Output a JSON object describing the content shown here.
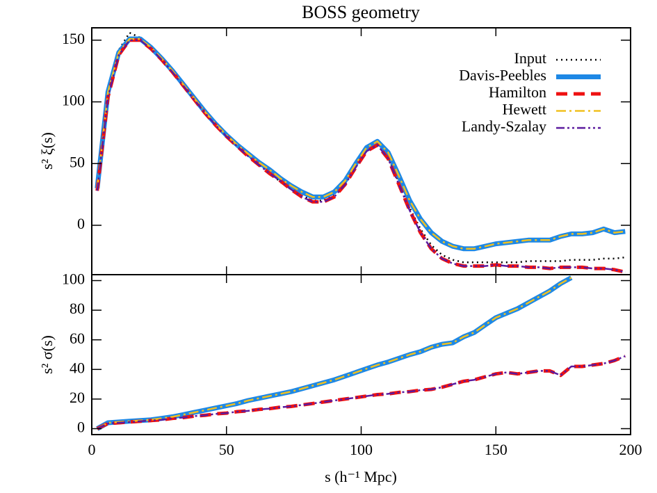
{
  "chart_data": [
    {
      "type": "line",
      "title": "BOSS geometry",
      "y_label": "s² ξ(s)",
      "legend": "upper right",
      "ylim": [
        -40,
        160
      ],
      "yticks": [
        0,
        50,
        100,
        150
      ],
      "x": [
        2,
        6,
        10,
        14,
        18,
        22,
        26,
        30,
        34,
        38,
        42,
        46,
        50,
        54,
        58,
        62,
        66,
        70,
        74,
        78,
        82,
        86,
        90,
        94,
        98,
        102,
        106,
        110,
        114,
        118,
        122,
        126,
        130,
        134,
        138,
        142,
        146,
        150,
        154,
        158,
        162,
        166,
        170,
        174,
        178,
        182,
        186,
        190,
        194,
        198
      ],
      "series": [
        {
          "name": "Input",
          "color": "#000000",
          "linestyle": "dotted",
          "values": [
            30,
            106,
            142,
            156,
            152,
            144,
            135,
            125,
            114,
            103,
            92,
            82,
            73,
            64,
            57,
            50,
            43,
            35,
            29,
            24,
            20,
            20,
            25,
            35,
            48,
            61,
            65,
            55,
            35,
            14,
            -3,
            -16,
            -24,
            -28,
            -30,
            -30,
            -30,
            -30,
            -30,
            -30,
            -29,
            -29,
            -29,
            -29,
            -28,
            -28,
            -28,
            -27,
            -27,
            -26
          ]
        },
        {
          "name": "Davis-Peebles",
          "color": "#1e88e5",
          "linestyle": "solid",
          "values": [
            30,
            108,
            140,
            151,
            151,
            144,
            135,
            125,
            114,
            103,
            92,
            82,
            73,
            65,
            58,
            51,
            45,
            38,
            32,
            27,
            23,
            23,
            27,
            36,
            50,
            63,
            68,
            59,
            40,
            20,
            5,
            -6,
            -13,
            -17,
            -19,
            -19,
            -17,
            -15,
            -14,
            -13,
            -12,
            -12,
            -12,
            -9,
            -7,
            -7,
            -6,
            -3,
            -6,
            -5
          ]
        },
        {
          "name": "Hamilton",
          "color": "#ee1111",
          "linestyle": "dashed",
          "values": [
            28,
            104,
            138,
            150,
            150,
            143,
            134,
            124,
            113,
            102,
            91,
            81,
            72,
            64,
            56,
            49,
            42,
            36,
            29,
            23,
            19,
            19,
            23,
            33,
            47,
            60,
            65,
            54,
            33,
            12,
            -6,
            -19,
            -27,
            -31,
            -33,
            -33,
            -33,
            -32,
            -33,
            -33,
            -34,
            -34,
            -35,
            -34,
            -34,
            -34,
            -35,
            -35,
            -36,
            -38
          ]
        },
        {
          "name": "Hewett",
          "color": "#f0c020",
          "linestyle": "dashdot",
          "values": [
            30,
            108,
            140,
            151,
            151,
            144,
            135,
            125,
            114,
            103,
            92,
            82,
            73,
            65,
            58,
            51,
            45,
            38,
            32,
            27,
            23,
            23,
            27,
            36,
            50,
            63,
            68,
            59,
            40,
            20,
            5,
            -6,
            -13,
            -17,
            -19,
            -19,
            -17,
            -15,
            -14,
            -13,
            -12,
            -12,
            -12,
            -9,
            -7,
            -7,
            -6,
            -3,
            -6,
            -5
          ]
        },
        {
          "name": "Landy-Szalay",
          "color": "#5b1a9e",
          "linestyle": "dashdotdot",
          "values": [
            28,
            104,
            138,
            150,
            150,
            143,
            134,
            124,
            113,
            102,
            91,
            81,
            72,
            64,
            56,
            49,
            42,
            36,
            29,
            23,
            19,
            19,
            23,
            33,
            47,
            60,
            65,
            54,
            33,
            12,
            -6,
            -19,
            -27,
            -31,
            -33,
            -33,
            -33,
            -32,
            -33,
            -33,
            -34,
            -34,
            -35,
            -34,
            -34,
            -34,
            -35,
            -35,
            -36,
            -38
          ]
        }
      ]
    },
    {
      "type": "line",
      "y_label": "s² σ(s)",
      "x_label": "s (h⁻¹ Mpc)",
      "xlim": [
        0,
        200
      ],
      "xticks": [
        0,
        50,
        100,
        150,
        200
      ],
      "ylim": [
        -4,
        104
      ],
      "yticks": [
        0,
        20,
        40,
        60,
        80,
        100
      ],
      "x": [
        2,
        6,
        10,
        14,
        18,
        22,
        26,
        30,
        34,
        38,
        42,
        46,
        50,
        54,
        58,
        62,
        66,
        70,
        74,
        78,
        82,
        86,
        90,
        94,
        98,
        102,
        106,
        110,
        114,
        118,
        122,
        126,
        130,
        134,
        138,
        142,
        146,
        150,
        154,
        158,
        162,
        166,
        170,
        174,
        178,
        182,
        186,
        190,
        194,
        198
      ],
      "series": [
        {
          "color": "#1e88e5",
          "linestyle": "solid",
          "values": [
            0,
            4,
            4.5,
            5,
            5.5,
            6,
            7,
            8,
            9.5,
            11,
            12.5,
            14,
            15.5,
            17,
            19,
            20.5,
            22,
            23.5,
            25,
            27,
            29,
            31,
            33,
            35.5,
            38,
            40.5,
            43,
            45,
            47.5,
            50,
            52,
            55,
            57,
            58,
            62,
            65,
            70,
            75,
            78,
            81,
            85,
            89,
            93,
            98,
            102,
            null,
            null,
            null,
            null,
            null
          ]
        },
        {
          "color": "#ee1111",
          "linestyle": "dashed",
          "values": [
            0,
            3.5,
            4,
            4.5,
            5,
            5.5,
            6,
            7,
            7.5,
            8.5,
            9,
            10,
            10.5,
            11.5,
            12,
            13,
            13.5,
            14.5,
            15,
            16,
            17,
            18,
            19,
            20,
            21,
            22,
            23,
            23.5,
            24.5,
            25,
            26,
            26.5,
            28,
            30,
            32,
            33,
            35,
            37,
            38,
            37,
            38,
            39,
            39,
            36,
            42,
            42,
            43,
            44,
            46,
            49
          ]
        },
        {
          "color": "#f0c020",
          "linestyle": "dashdot",
          "values": [
            0,
            4,
            4.5,
            5,
            5.5,
            6,
            7,
            8,
            9.5,
            11,
            12.5,
            14,
            15.5,
            17,
            19,
            20.5,
            22,
            23.5,
            25,
            27,
            29,
            31,
            33,
            35.5,
            38,
            40.5,
            43,
            45,
            47.5,
            50,
            52,
            55,
            57,
            58,
            62,
            65,
            70,
            75,
            78,
            81,
            85,
            89,
            93,
            98,
            102,
            null,
            null,
            null,
            null,
            null
          ]
        },
        {
          "color": "#5b1a9e",
          "linestyle": "dashdotdot",
          "values": [
            0,
            3.5,
            4,
            4.5,
            5,
            5.5,
            6,
            7,
            7.5,
            8.5,
            9,
            10,
            10.5,
            11.5,
            12,
            13,
            13.5,
            14.5,
            15,
            16,
            17,
            18,
            19,
            20,
            21,
            22,
            23,
            23.5,
            24.5,
            25,
            26,
            26.5,
            28,
            30,
            32,
            33,
            35,
            37,
            38,
            37,
            38,
            39,
            39,
            36,
            42,
            42,
            43,
            44,
            46,
            49
          ]
        }
      ]
    }
  ]
}
